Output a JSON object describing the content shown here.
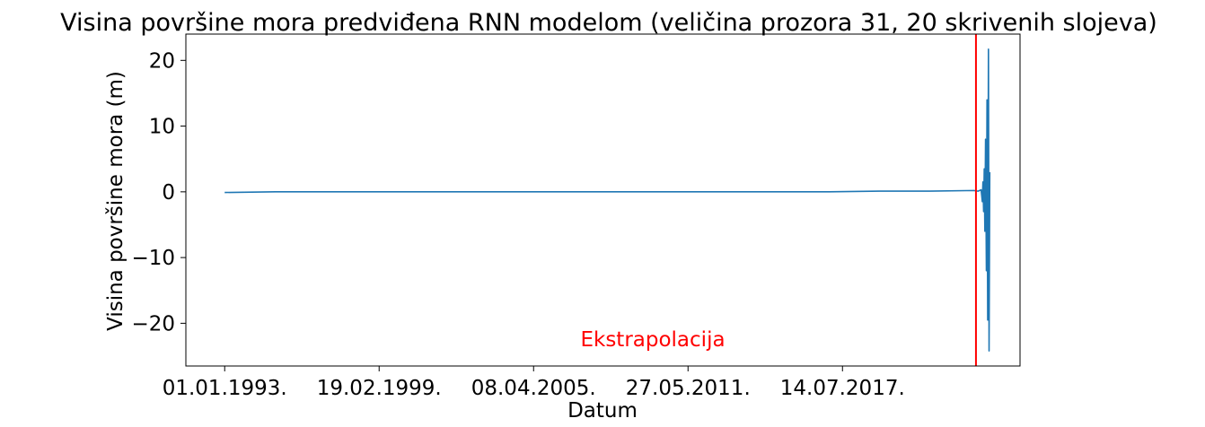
{
  "chart_data": {
    "type": "line",
    "title": "Visina površine mora predviđena RNN modelom (veličina prozora 31, 20 skrivenih slojeva)",
    "xlabel": "Datum",
    "ylabel": "Visina površine mora (m)",
    "x_ticks": [
      "01.01.1993.",
      "19.02.1999.",
      "08.04.2005.",
      "27.05.2011.",
      "14.07.2017."
    ],
    "x_tick_dates": [
      "1993-01-01",
      "1999-02-19",
      "2005-04-08",
      "2011-05-27",
      "2017-07-14"
    ],
    "y_ticks": [
      "−20",
      "−10",
      "0",
      "10",
      "20"
    ],
    "y_tick_values": [
      -20,
      -10,
      0,
      10,
      20
    ],
    "xlim": [
      "1991-06-18",
      "2024-08-01"
    ],
    "ylim": [
      -26.5,
      24
    ],
    "grid": false,
    "legend": "none",
    "series": [
      {
        "color": "#1f77b4",
        "x": [
          "1993-01-01",
          "1995-01-01",
          "1997-01-01",
          "1999-01-01",
          "2001-01-01",
          "2003-01-01",
          "2005-01-01",
          "2007-01-01",
          "2009-01-01",
          "2011-01-01",
          "2013-01-01",
          "2015-01-01",
          "2017-01-01",
          "2019-01-01",
          "2021-01-01",
          "2022-10-01",
          "2022-12-01",
          "2023-01-15",
          "2023-02-01",
          "2023-02-10",
          "2023-02-20",
          "2023-03-01",
          "2023-03-10",
          "2023-03-20",
          "2023-04-01",
          "2023-04-10",
          "2023-04-20",
          "2023-05-01",
          "2023-05-10",
          "2023-05-20"
        ],
        "values": [
          -0.1,
          0.0,
          0.0,
          0.0,
          0.0,
          0.0,
          0.0,
          0.0,
          0.0,
          0.0,
          0.0,
          0.0,
          0.0,
          0.1,
          0.1,
          0.2,
          0.1,
          0.3,
          -1.5,
          1.5,
          -3.0,
          3.5,
          -6.0,
          8.0,
          -12.0,
          14.0,
          -19.5,
          21.7,
          -24.2,
          3.0
        ]
      }
    ],
    "annotations": [
      {
        "type": "vline",
        "x": "2022-11-01",
        "color": "#ff0000"
      },
      {
        "type": "text",
        "text": "Ekstrapolacija",
        "x": "2010-01-01",
        "y": -23.5,
        "color": "#ff0000"
      }
    ]
  }
}
